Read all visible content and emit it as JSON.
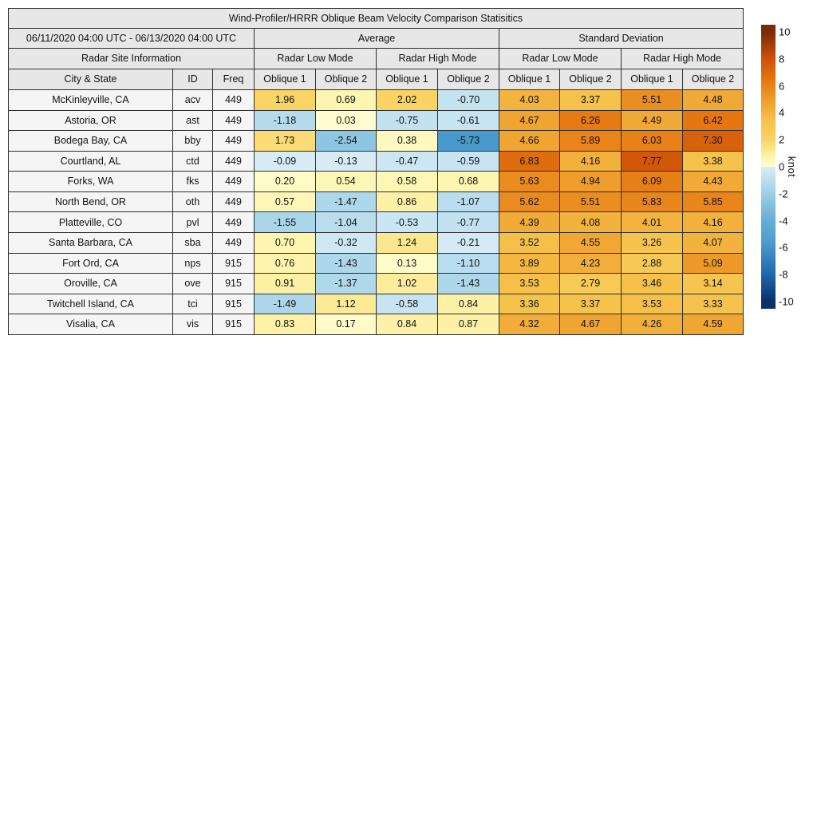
{
  "chart_data": {
    "type": "heatmap",
    "title": "Wind-Profiler/HRRR Oblique Beam Velocity Comparison Statisitics",
    "date_range": "06/11/2020 04:00 UTC - 06/13/2020 04:00 UTC",
    "site_info_label": "Radar Site Information",
    "group_headers": [
      "Average",
      "Standard Deviation"
    ],
    "mode_headers": [
      "Radar Low Mode",
      "Radar High Mode",
      "Radar Low Mode",
      "Radar High Mode"
    ],
    "column_headers": [
      "City & State",
      "ID",
      "Freq",
      "Oblique 1",
      "Oblique 2",
      "Oblique 1",
      "Oblique 2",
      "Oblique 1",
      "Oblique 2",
      "Oblique 1",
      "Oblique 2"
    ],
    "rows": [
      {
        "city": "McKinleyville, CA",
        "id": "acv",
        "freq": "449",
        "values": [
          1.96,
          0.69,
          2.02,
          -0.7,
          4.03,
          3.37,
          5.51,
          4.48
        ]
      },
      {
        "city": "Astoria, OR",
        "id": "ast",
        "freq": "449",
        "values": [
          -1.18,
          0.03,
          -0.75,
          -0.61,
          4.67,
          6.26,
          4.49,
          6.42
        ]
      },
      {
        "city": "Bodega Bay, CA",
        "id": "bby",
        "freq": "449",
        "values": [
          1.73,
          -2.54,
          0.38,
          -5.73,
          4.66,
          5.89,
          6.03,
          7.3
        ]
      },
      {
        "city": "Courtland, AL",
        "id": "ctd",
        "freq": "449",
        "values": [
          -0.09,
          -0.13,
          -0.47,
          -0.59,
          6.83,
          4.16,
          7.77,
          3.38
        ]
      },
      {
        "city": "Forks, WA",
        "id": "fks",
        "freq": "449",
        "values": [
          0.2,
          0.54,
          0.58,
          0.68,
          5.63,
          4.94,
          6.09,
          4.43
        ]
      },
      {
        "city": "North Bend, OR",
        "id": "oth",
        "freq": "449",
        "values": [
          0.57,
          -1.47,
          0.86,
          -1.07,
          5.62,
          5.51,
          5.83,
          5.85
        ]
      },
      {
        "city": "Platteville, CO",
        "id": "pvl",
        "freq": "449",
        "values": [
          -1.55,
          -1.04,
          -0.53,
          -0.77,
          4.39,
          4.08,
          4.01,
          4.16
        ]
      },
      {
        "city": "Santa Barbara, CA",
        "id": "sba",
        "freq": "449",
        "values": [
          0.7,
          -0.32,
          1.24,
          -0.21,
          3.52,
          4.55,
          3.26,
          4.07
        ]
      },
      {
        "city": "Fort Ord, CA",
        "id": "nps",
        "freq": "915",
        "values": [
          0.76,
          -1.43,
          0.13,
          -1.1,
          3.89,
          4.23,
          2.88,
          5.09
        ]
      },
      {
        "city": "Oroville, CA",
        "id": "ove",
        "freq": "915",
        "values": [
          0.91,
          -1.37,
          1.02,
          -1.43,
          3.53,
          2.79,
          3.46,
          3.14
        ]
      },
      {
        "city": "Twitchell Island, CA",
        "id": "tci",
        "freq": "915",
        "values": [
          -1.49,
          1.12,
          -0.58,
          0.84,
          3.36,
          3.37,
          3.53,
          3.33
        ]
      },
      {
        "city": "Visalia, CA",
        "id": "vis",
        "freq": "915",
        "values": [
          0.83,
          0.17,
          0.84,
          0.87,
          4.32,
          4.67,
          4.26,
          4.59
        ]
      }
    ],
    "colorbar": {
      "label": "knot",
      "range": [
        -10,
        10
      ],
      "ticks": [
        10,
        8,
        6,
        4,
        2,
        0,
        -2,
        -4,
        -6,
        -8,
        -10
      ],
      "positive_stops": [
        [
          0,
          "#fffdd0"
        ],
        [
          0.7,
          "#fdf5b0"
        ],
        [
          2,
          "#f9d464"
        ],
        [
          3.5,
          "#f5c04a"
        ],
        [
          5,
          "#ee9c2b"
        ],
        [
          6.5,
          "#e4740f"
        ],
        [
          8,
          "#cd5208"
        ],
        [
          10,
          "#7a2b06"
        ]
      ],
      "negative_stops": [
        [
          0,
          "#daedf7"
        ],
        [
          1.2,
          "#b5dbed"
        ],
        [
          2.6,
          "#8cc5e0"
        ],
        [
          4,
          "#68aed4"
        ],
        [
          5.7,
          "#499bcd"
        ],
        [
          8,
          "#2166ac"
        ],
        [
          10,
          "#083268"
        ]
      ]
    }
  }
}
